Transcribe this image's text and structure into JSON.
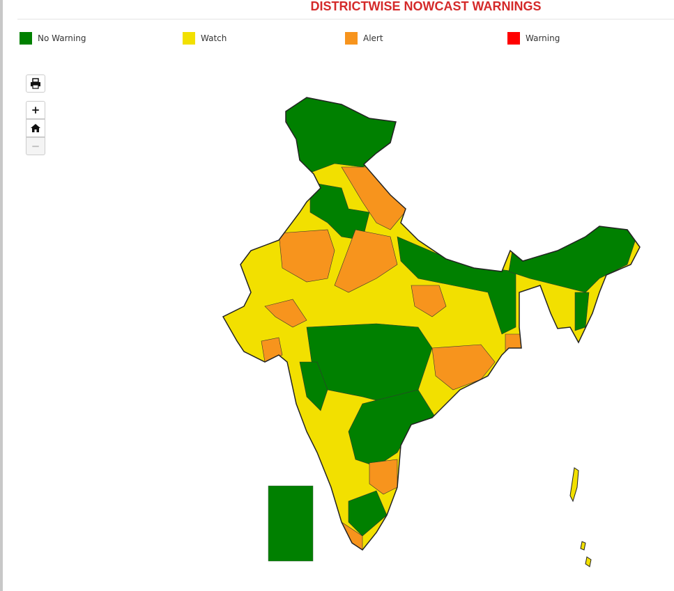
{
  "header": {
    "title": "DISTRICTWISE NOWCAST WARNINGS"
  },
  "legend": [
    {
      "label": "No Warning",
      "color": "#008000"
    },
    {
      "label": "Watch",
      "color": "#f2e000"
    },
    {
      "label": "Alert",
      "color": "#f7941d"
    },
    {
      "label": "Warning",
      "color": "#ff0000"
    }
  ],
  "controls": {
    "zoom_in": "+",
    "zoom_out": "−"
  }
}
